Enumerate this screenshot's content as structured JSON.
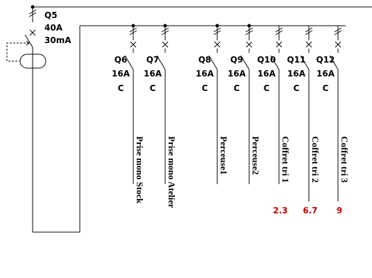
{
  "main": {
    "name": "Q5",
    "rating": "40A",
    "sensitivity": "30mA"
  },
  "breakers": [
    {
      "name": "Q6",
      "rating": "16A",
      "curve": "C",
      "circuit": "Prise mono Stock"
    },
    {
      "name": "Q7",
      "rating": "16A",
      "curve": "C",
      "circuit": "Prise mono Atelier"
    },
    {
      "name": "Q8",
      "rating": "16A",
      "curve": "C",
      "circuit": "Perceuse1"
    },
    {
      "name": "Q9",
      "rating": "16A",
      "curve": "C",
      "circuit": "Perceuse2"
    },
    {
      "name": "Q10",
      "rating": "16A",
      "curve": "C",
      "circuit": "Coffret tri 1",
      "value": "2.3"
    },
    {
      "name": "Q11",
      "rating": "16A",
      "curve": "C",
      "circuit": "Coffret tri 2",
      "value": "6.7"
    },
    {
      "name": "Q12",
      "rating": "16A",
      "curve": "C",
      "circuit": "Coffret tri 3",
      "value": "9"
    }
  ]
}
